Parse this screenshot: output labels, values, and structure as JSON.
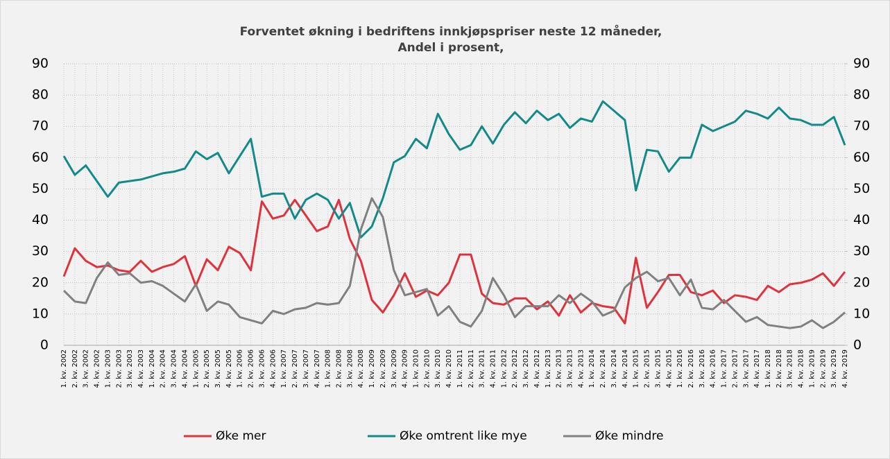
{
  "chart_data": {
    "type": "line",
    "title": "Forventet økning i bedriftens innkjøpspriser neste 12 måneder,",
    "subtitle": "Andel i prosent,",
    "categories": [
      "1. kv. 2002",
      "2. kv. 2002",
      "3. kv. 2002",
      "4. kv. 2002",
      "1. kv. 2003",
      "2. kv. 2003",
      "3. kv. 2003",
      "4. kv. 2003",
      "1. kv. 2004",
      "2. kv. 2004",
      "3. kv. 2004",
      "4. kv. 2004",
      "1. kv. 2005",
      "2. kv. 2005",
      "3. kv. 2005",
      "4. kv. 2005",
      "1. kv. 2006",
      "2. kv. 2006",
      "3. kv. 2006",
      "4. kv. 2006",
      "1. kv. 2007",
      "2. kv. 2007",
      "3. kv. 2007",
      "4. kv. 2007",
      "1. kv. 2008",
      "2. kv. 2008",
      "3. kv. 2008",
      "4. kv. 2008",
      "1. kv. 2009",
      "2. kv. 2009",
      "3. kv. 2009",
      "4. kv. 2009",
      "1. kv. 2010",
      "2. kv. 2010",
      "3. kv. 2010",
      "4. kv. 2010",
      "1. kv. 2011",
      "2. kv. 2011",
      "3. kv. 2011",
      "4. kv. 2011",
      "1. kv. 2012",
      "2. kv. 2012",
      "3. kv. 2012",
      "4. kv. 2012",
      "1. kv. 2013",
      "2. kv. 2013",
      "3. kv. 2013",
      "4. kv. 2013",
      "1. kv. 2014",
      "2. kv. 2014",
      "3. kv. 2014",
      "4. kv. 2014",
      "1. kv. 2015",
      "2. kv. 2015",
      "3. kv. 2015",
      "4. kv. 2015",
      "1. kv. 2016",
      "2. kv. 2016",
      "3. kv. 2016",
      "4. kv. 2016",
      "1. kv. 2017",
      "2. kv. 2017",
      "3. kv. 2017",
      "4. kv. 2017",
      "1. kv. 2018",
      "2. kv. 2018",
      "3. kv. 2018",
      "4. kv. 2018",
      "1. kv. 2019",
      "2. kv. 2019",
      "3. kv. 2019",
      "4. kv. 2019"
    ],
    "series": [
      {
        "name": "Øke mer",
        "color": "#e0323c",
        "values": [
          22,
          31,
          27,
          25,
          25.5,
          24,
          23.5,
          27,
          23.5,
          25,
          26,
          28.5,
          19,
          27.5,
          24,
          31.5,
          29.5,
          24,
          46,
          40.5,
          41.5,
          46.5,
          41.5,
          36.5,
          38,
          46.5,
          34,
          27,
          14.5,
          10.5,
          16,
          23,
          15.5,
          17.5,
          16,
          20,
          29,
          29,
          16.5,
          13.5,
          13,
          15,
          15,
          11.5,
          14,
          9.5,
          16,
          10.5,
          13.5,
          12.5,
          12,
          7,
          28,
          12,
          17,
          22.5,
          22.5,
          17,
          16,
          17.5,
          13.5,
          16,
          15.5,
          14.5,
          19,
          17,
          19.5,
          20,
          21,
          23,
          19,
          23.5
        ]
      },
      {
        "name": "Øke omtrent like mye",
        "color": "#138a8a",
        "values": [
          60.5,
          54.5,
          57.5,
          52.5,
          47.5,
          52,
          52.5,
          53,
          54,
          55,
          55.5,
          56.5,
          62,
          59.5,
          61.5,
          55,
          60.5,
          66,
          47.5,
          48.5,
          48.5,
          40.5,
          46.5,
          48.5,
          46.5,
          40.5,
          45.5,
          34.5,
          38,
          47,
          58.5,
          60.5,
          66,
          63,
          74,
          67.5,
          62.5,
          64,
          70,
          64.5,
          70.5,
          74.5,
          71,
          75,
          72,
          74,
          69.5,
          72.5,
          71.5,
          78,
          75,
          72,
          49.5,
          62.5,
          62,
          55.5,
          60,
          60,
          70.5,
          68.5,
          70,
          71.5,
          75,
          74,
          72.5,
          76,
          72.5,
          72,
          70.5,
          70.5,
          73,
          64
        ]
      },
      {
        "name": "Øke mindre",
        "color": "#808080",
        "values": [
          17.5,
          14,
          13.5,
          21.5,
          26.5,
          22.5,
          23,
          20,
          20.5,
          19,
          16.5,
          14,
          19.5,
          11,
          14,
          13,
          9,
          8,
          7,
          11,
          10,
          11.5,
          12,
          13.5,
          13,
          13.5,
          19,
          37,
          47,
          41,
          24,
          16,
          17,
          18,
          9.5,
          12.5,
          7.5,
          6,
          11,
          21.5,
          16,
          9,
          12.5,
          12.5,
          12.5,
          16,
          13.5,
          16.5,
          14,
          9.5,
          11,
          18.5,
          21.5,
          23.5,
          20.5,
          21.5,
          16,
          21,
          12,
          11.5,
          14.5,
          11,
          7.5,
          9,
          6.5,
          6,
          5.5,
          6,
          8,
          5.5,
          7.5,
          10.5
        ]
      }
    ],
    "ylim": [
      0,
      90
    ],
    "yticks": [
      0,
      10,
      20,
      30,
      40,
      50,
      60,
      70,
      80,
      90
    ],
    "y2lim": [
      0,
      90
    ],
    "y2ticks": [
      0,
      10,
      20,
      30,
      40,
      50,
      60,
      70,
      80,
      90
    ],
    "grid": true,
    "legend": "bottom"
  }
}
